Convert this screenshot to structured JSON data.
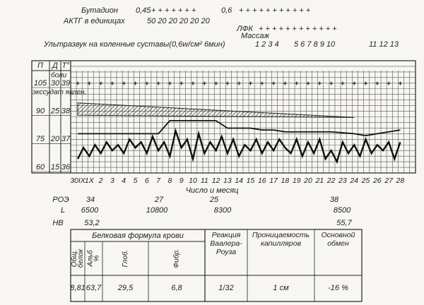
{
  "treatments": {
    "butadion": {
      "label": "Бутадион",
      "dose1": "0,45",
      "plus1": "+ + + + + + +",
      "dose2": "0,6",
      "plus2": "+ + + + + + + + + + +"
    },
    "actg": {
      "label": "АКТГ в единицах",
      "doses": "50 20 20 20 20 20"
    },
    "lfk": {
      "label": "ЛФК",
      "plus": "+ + + + + + + + + + + +"
    },
    "massage": {
      "label": "Массаж"
    },
    "ultrasound": {
      "label": "Ультразвук на коленные суставы(0,6w/см² 6мин)",
      "group1": "1 2 3 4",
      "group2": "5 6 7 8 9 10",
      "group3": "11 12 13"
    }
  },
  "chart": {
    "axis_headers": [
      "П",
      "Д",
      "T°"
    ],
    "pain_label": "боли",
    "exudate_label": "экссудат явлен.",
    "axis_rows": [
      [
        105,
        30,
        39
      ],
      [
        90,
        25,
        38
      ],
      [
        75,
        20,
        37
      ],
      [
        60,
        15,
        36
      ]
    ],
    "x_label": "Число и месяц",
    "days": [
      "30IX",
      "1X",
      "2",
      "3",
      "4",
      "5",
      "6",
      "7",
      "8",
      "9",
      "10",
      "11",
      "12",
      "13",
      "14",
      "15",
      "16",
      "17",
      "18",
      "19",
      "20",
      "21",
      "22",
      "23",
      "24",
      "25",
      "26",
      "27",
      "28"
    ],
    "pain": [
      30,
      30,
      30,
      30,
      30,
      30,
      30,
      30,
      30,
      30,
      30,
      30,
      30,
      30,
      30,
      30,
      30,
      30,
      30,
      30,
      30,
      30,
      30,
      30,
      30,
      30,
      30,
      30,
      30
    ],
    "exudate": {
      "x": [
        0,
        24
      ],
      "upper": [
        26.5,
        23.9
      ],
      "lower": [
        24.3,
        23.9
      ]
    },
    "pulse": [
      78,
      78,
      78,
      78,
      78,
      78,
      78,
      78,
      85,
      85,
      85,
      85,
      85,
      81,
      81,
      81,
      80,
      80,
      79,
      79,
      79,
      79,
      79,
      78.5,
      78,
      77,
      78,
      79,
      80
    ],
    "temperature": [
      36.3,
      36.7,
      36.4,
      36.8,
      36.5,
      36.9,
      36.6,
      36.8,
      36.5,
      37.0,
      36.7,
      36.9,
      36.5,
      37.1,
      36.6,
      36.9,
      36.4,
      37.3,
      36.7,
      37.0,
      36.3,
      37.2,
      36.5,
      36.9,
      36.6,
      37.1,
      36.5,
      37.0,
      36.4,
      36.8,
      36.6,
      37.0,
      36.5,
      36.9,
      36.6,
      37.0,
      36.7,
      36.5,
      37.0,
      36.4,
      36.9,
      36.5,
      37.0,
      36.3,
      36.6,
      36.2,
      36.9,
      36.5,
      36.8,
      36.4,
      37.0,
      36.5,
      36.8,
      36.6,
      36.9,
      36.3,
      36.9
    ]
  },
  "labs": [
    {
      "label": "РОЭ",
      "values": [
        "34",
        "27",
        "25",
        "38"
      ]
    },
    {
      "label": "L",
      "values": [
        "6500",
        "10800",
        "8300",
        "8500"
      ]
    },
    {
      "label": "НВ",
      "values": [
        "53,2",
        "55,7"
      ]
    }
  ],
  "table": {
    "group_header": "Белковая формула крови",
    "headers": [
      [
        "Общ.",
        "белок"
      ],
      [
        "Альб",
        "%"
      ],
      [
        "Глоб."
      ],
      [
        "Фибр."
      ],
      [
        "Реакция",
        "Ваалера-",
        "Роуза"
      ],
      [
        "Проницаемость",
        "капилляров"
      ],
      [
        "Основной",
        "обмен"
      ]
    ],
    "row": [
      "8,81",
      "63,7",
      "29,5",
      "6,8",
      "1/32",
      "1 см",
      "-16 %"
    ]
  }
}
